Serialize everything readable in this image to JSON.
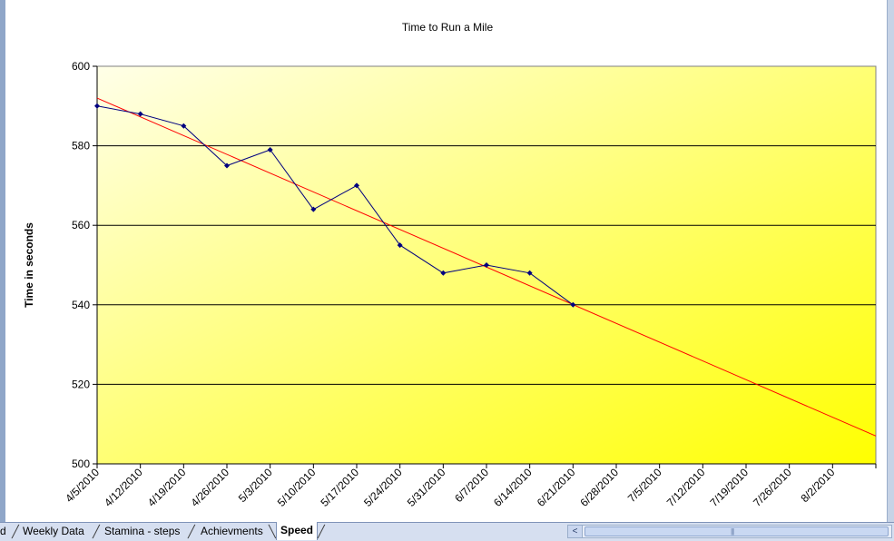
{
  "chart_data": {
    "type": "line",
    "title": "Time to Run a Mile",
    "xlabel": "",
    "ylabel": "Time in seconds",
    "ylim": [
      500,
      600
    ],
    "yticks": [
      500,
      520,
      540,
      560,
      580,
      600
    ],
    "grid": "horizontal major gridlines",
    "legend": "none",
    "background": "yellow gradient (light top-left to bright yellow bottom-right)",
    "x_tick_labels": [
      "4/5/2010",
      "4/12/2010",
      "4/19/2010",
      "4/26/2010",
      "5/3/2010",
      "5/10/2010",
      "5/17/2010",
      "5/24/2010",
      "5/31/2010",
      "6/7/2010",
      "6/14/2010",
      "6/21/2010",
      "6/28/2010",
      "7/5/2010",
      "7/12/2010",
      "7/19/2010",
      "7/26/2010",
      "8/2/2010"
    ],
    "x_axis_end": "8/9/2010",
    "series": [
      {
        "type": "line-with-markers",
        "color": "#00007f",
        "marker": "diamond",
        "points": [
          {
            "x": "4/5/2010",
            "y": 590
          },
          {
            "x": "4/12/2010",
            "y": 588
          },
          {
            "x": "4/19/2010",
            "y": 585
          },
          {
            "x": "4/26/2010",
            "y": 575
          },
          {
            "x": "5/3/2010",
            "y": 579
          },
          {
            "x": "5/10/2010",
            "y": 564
          },
          {
            "x": "5/17/2010",
            "y": 570
          },
          {
            "x": "5/24/2010",
            "y": 555
          },
          {
            "x": "5/31/2010",
            "y": 548
          },
          {
            "x": "6/7/2010",
            "y": 550
          },
          {
            "x": "6/14/2010",
            "y": 548
          },
          {
            "x": "6/21/2010",
            "y": 540
          }
        ]
      },
      {
        "type": "trendline",
        "color": "#ff0000",
        "points": [
          {
            "x": "4/5/2010",
            "y": 592
          },
          {
            "x": "8/9/2010",
            "y": 507
          }
        ]
      }
    ]
  },
  "sheet_tabs": {
    "items": [
      {
        "label": "d",
        "active": false
      },
      {
        "label": "Weekly Data",
        "active": false
      },
      {
        "label": "Stamina - steps",
        "active": false
      },
      {
        "label": "Achievments",
        "active": false
      },
      {
        "label": "Speed",
        "active": true
      }
    ]
  },
  "colors": {
    "gradient_light": "#ffffe0",
    "gradient_dark": "#ffff00",
    "trend": "#ff0000",
    "series": "#00007f"
  }
}
